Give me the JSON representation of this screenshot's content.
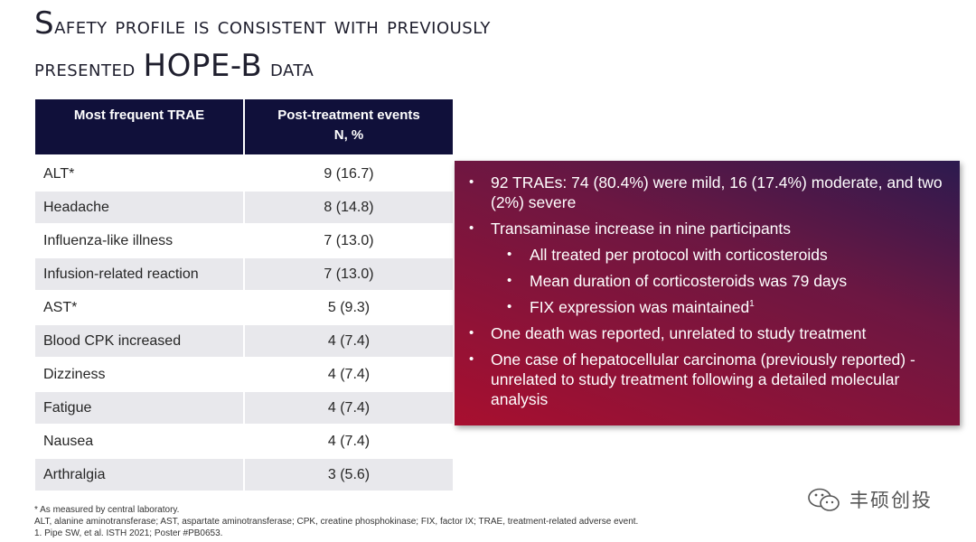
{
  "title": {
    "line1_cap": "S",
    "line1_rest": "afety profile is consistent with previously",
    "line2_pre": "presented ",
    "line2_big": "HOPE-B",
    "line2_post": " data"
  },
  "table": {
    "header": {
      "col1": "Most frequent TRAE",
      "col2_line1": "Post-treatment events",
      "col2_line2": "N, %"
    },
    "rows": [
      {
        "label": "ALT*",
        "value": "9 (16.7)"
      },
      {
        "label": "Headache",
        "value": "8 (14.8)"
      },
      {
        "label": "Influenza-like illness",
        "value": "7 (13.0)"
      },
      {
        "label": "Infusion-related  reaction",
        "value": "7 (13.0)"
      },
      {
        "label": "AST*",
        "value": "5 (9.3)"
      },
      {
        "label": "Blood CPK increased",
        "value": "4 (7.4)"
      },
      {
        "label": "Dizziness",
        "value": "4 (7.4)"
      },
      {
        "label": "Fatigue",
        "value": "4 (7.4)"
      },
      {
        "label": "Nausea",
        "value": "4 (7.4)"
      },
      {
        "label": "Arthralgia",
        "value": "3 (5.6)"
      }
    ]
  },
  "callout": {
    "bullet_char": "•",
    "b1": "92 TRAEs: 74 (80.4%) were mild, 16 (17.4%) moderate, and two (2%) severe",
    "b2": "Transaminase increase in nine participants",
    "b2a": "All treated per protocol with corticosteroids",
    "b2b": "Mean duration of corticosteroids was 79 days",
    "b2c": "FIX expression was maintained",
    "b2c_sup": "1",
    "b3": "One death was reported, unrelated to study treatment",
    "b4": "One case of hepatocellular carcinoma (previously reported) - unrelated to study treatment following a detailed molecular analysis"
  },
  "footnotes": {
    "f1": "* As measured by central laboratory.",
    "f2": "ALT, alanine aminotransferase; AST, aspartate aminotransferase; CPK, creatine phosphokinase; FIX, factor IX; TRAE, treatment-related adverse event.",
    "f3": "1. Pipe SW, et al. ISTH 2021; Poster #PB0653."
  },
  "watermark": {
    "text": "丰硕创投",
    "icon": "wechat-icon"
  }
}
